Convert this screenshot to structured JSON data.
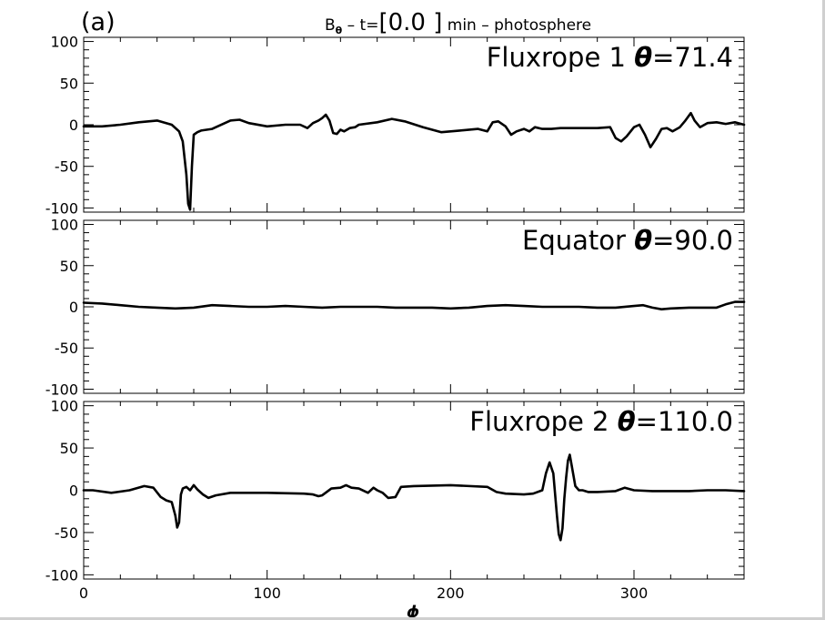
{
  "figure": {
    "panel_label": "(a)",
    "title_prefix": "B",
    "title_sub": "θ",
    "title_mid": " – t=",
    "title_time": "[0.0 ]",
    "title_suffix": " min – photosphere",
    "xlabel": "ϕ"
  },
  "colors": {
    "line": "#000000",
    "axis": "#000000",
    "background": "#ffffff"
  },
  "chart_data": [
    {
      "type": "line",
      "annotation": "Fluxrope 1 θ=71.4",
      "xlim": [
        0,
        360
      ],
      "ylim": [
        -105,
        105
      ],
      "yticks": [
        100,
        50,
        0,
        -50,
        -100
      ],
      "xticks": [
        0,
        100,
        200,
        300
      ],
      "series": [
        {
          "x": [
            0,
            10,
            20,
            30,
            40,
            48,
            52,
            54,
            56,
            57,
            58,
            59,
            60,
            62,
            64,
            70,
            80,
            85,
            90,
            100,
            110,
            118,
            122,
            125,
            128,
            130,
            132,
            134,
            136,
            138,
            140,
            142,
            145,
            148,
            150,
            160,
            168,
            175,
            185,
            195,
            205,
            215,
            220,
            223,
            226,
            230,
            233,
            236,
            240,
            243,
            246,
            250,
            255,
            260,
            270,
            280,
            287,
            290,
            293,
            296,
            300,
            303,
            306,
            309,
            312,
            315,
            318,
            321,
            325,
            328,
            331,
            333,
            336,
            340,
            345,
            350,
            355,
            360
          ],
          "y": [
            -2,
            -2,
            0,
            3,
            5,
            0,
            -8,
            -20,
            -60,
            -95,
            -102,
            -50,
            -12,
            -9,
            -7,
            -5,
            5,
            6,
            2,
            -2,
            0,
            0,
            -4,
            2,
            5,
            8,
            12,
            5,
            -10,
            -11,
            -6,
            -8,
            -4,
            -3,
            0,
            3,
            7,
            4,
            -3,
            -9,
            -7,
            -5,
            -8,
            3,
            4,
            -2,
            -12,
            -8,
            -5,
            -8,
            -3,
            -5,
            -5,
            -4,
            -4,
            -4,
            -3,
            -16,
            -20,
            -14,
            -3,
            0,
            -12,
            -27,
            -17,
            -5,
            -4,
            -8,
            -3,
            5,
            14,
            5,
            -3,
            2,
            3,
            1,
            3,
            0
          ]
        }
      ]
    },
    {
      "type": "line",
      "annotation": "Equator θ=90.0",
      "xlim": [
        0,
        360
      ],
      "ylim": [
        -105,
        105
      ],
      "yticks": [
        100,
        50,
        0,
        -50,
        -100
      ],
      "xticks": [
        0,
        100,
        200,
        300
      ],
      "series": [
        {
          "x": [
            0,
            10,
            20,
            30,
            40,
            50,
            60,
            70,
            80,
            90,
            100,
            110,
            120,
            130,
            140,
            150,
            160,
            170,
            180,
            190,
            200,
            210,
            220,
            230,
            240,
            250,
            260,
            270,
            280,
            290,
            300,
            305,
            310,
            315,
            320,
            330,
            340,
            345,
            350,
            355,
            360
          ],
          "y": [
            5,
            4,
            2,
            0,
            -1,
            -2,
            -1,
            2,
            1,
            0,
            0,
            1,
            0,
            -1,
            0,
            0,
            0,
            -1,
            -1,
            -1,
            -2,
            -1,
            1,
            2,
            1,
            0,
            0,
            0,
            -1,
            -1,
            1,
            2,
            -1,
            -3,
            -2,
            -1,
            -1,
            -1,
            3,
            6,
            6
          ]
        }
      ]
    },
    {
      "type": "line",
      "annotation": "Fluxrope 2 θ=110.0",
      "xlim": [
        0,
        360
      ],
      "ylim": [
        -105,
        105
      ],
      "yticks": [
        100,
        50,
        0,
        -50,
        -100
      ],
      "xticks": [
        0,
        100,
        200,
        300
      ],
      "series": [
        {
          "x": [
            0,
            5,
            15,
            25,
            33,
            38,
            42,
            45,
            48,
            50,
            51,
            52,
            53,
            54,
            56,
            58,
            60,
            62,
            65,
            68,
            72,
            80,
            100,
            120,
            125,
            128,
            130,
            135,
            140,
            143,
            146,
            150,
            155,
            158,
            160,
            163,
            166,
            170,
            173,
            180,
            200,
            220,
            225,
            230,
            240,
            245,
            250,
            252,
            254,
            256,
            258,
            259,
            260,
            261,
            262,
            263,
            264,
            265,
            266,
            268,
            270,
            272,
            275,
            280,
            290,
            295,
            300,
            310,
            330,
            340,
            350,
            360
          ],
          "y": [
            0,
            0,
            -3,
            0,
            5,
            3,
            -8,
            -12,
            -14,
            -30,
            -44,
            -38,
            -5,
            2,
            4,
            0,
            6,
            1,
            -5,
            -9,
            -6,
            -3,
            -3,
            -4,
            -5,
            -7,
            -6,
            2,
            3,
            6,
            3,
            2,
            -3,
            3,
            0,
            -3,
            -9,
            -8,
            4,
            5,
            6,
            4,
            -2,
            -4,
            -5,
            -4,
            0,
            20,
            33,
            20,
            -30,
            -52,
            -59,
            -45,
            -10,
            15,
            35,
            42,
            30,
            5,
            0,
            0,
            -2,
            -2,
            -1,
            3,
            0,
            -1,
            -1,
            0,
            0,
            -1
          ]
        }
      ]
    }
  ]
}
